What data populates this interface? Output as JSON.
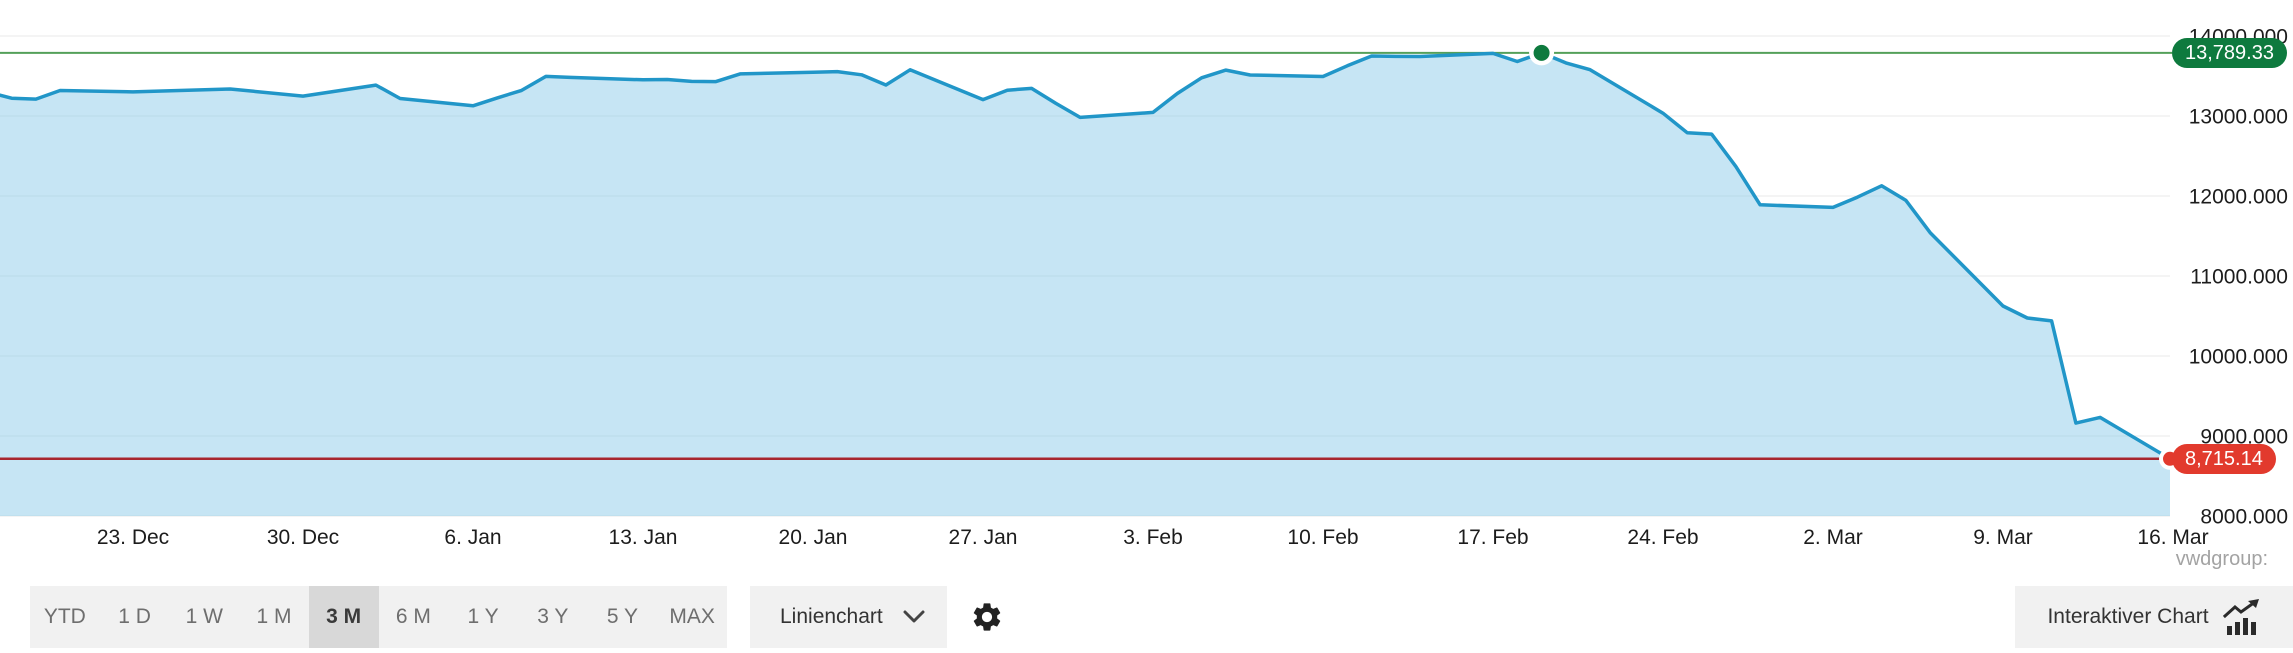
{
  "watermark": "vwdgroup:",
  "colors": {
    "line": "#2196c8",
    "area_fill": "#8ecce9",
    "grid": "#e9e9e9",
    "high_line": "#54a05a",
    "low_line": "#a8262e",
    "high_badge": "#0e7a3e",
    "low_badge": "#e23a2d",
    "axis_text": "#1c1c1c"
  },
  "chart_data": {
    "type": "area",
    "title": "",
    "xlabel": "",
    "ylabel": "",
    "grid": true,
    "legend": "none",
    "ylim": [
      8000,
      14450
    ],
    "y_axis": {
      "tick_labels": [
        "14000.000",
        "13000.000",
        "12000.000",
        "11000.000",
        "10000.000",
        "9000.000",
        "8000.000"
      ],
      "tick_values": [
        14000,
        13000,
        12000,
        11000,
        10000,
        9000,
        8000
      ]
    },
    "x_axis": {
      "tick_labels": [
        "23. Dec",
        "30. Dec",
        "6. Jan",
        "13. Jan",
        "20. Jan",
        "27. Jan",
        "3. Feb",
        "10. Feb",
        "17. Feb",
        "24. Feb",
        "2. Mar",
        "9. Mar",
        "16. Mar"
      ],
      "days_per_tick": 7
    },
    "high_marker": {
      "label": "13,789.33",
      "value": 13789.33
    },
    "low_marker": {
      "label": "8,715.14",
      "value": 8715.14
    },
    "series": [
      {
        "name": "price",
        "points": [
          {
            "date": "17. Dec",
            "d": -5.5,
            "value": 13260
          },
          {
            "date": "18. Dec",
            "d": -5,
            "value": 13222
          },
          {
            "date": "19. Dec",
            "d": -4,
            "value": 13211
          },
          {
            "date": "20. Dec",
            "d": -3,
            "value": 13319
          },
          {
            "date": "23. Dec",
            "d": 0,
            "value": 13301
          },
          {
            "date": "27. Dec",
            "d": 4,
            "value": 13337
          },
          {
            "date": "30. Dec",
            "d": 7,
            "value": 13249
          },
          {
            "date": "2. Jan",
            "d": 10,
            "value": 13386
          },
          {
            "date": "3. Jan",
            "d": 11,
            "value": 13219
          },
          {
            "date": "6. Jan",
            "d": 14,
            "value": 13127
          },
          {
            "date": "7. Jan",
            "d": 15,
            "value": 13226
          },
          {
            "date": "8. Jan",
            "d": 16,
            "value": 13320
          },
          {
            "date": "9. Jan",
            "d": 17,
            "value": 13495
          },
          {
            "date": "10. Jan",
            "d": 18,
            "value": 13483
          },
          {
            "date": "13. Jan",
            "d": 21,
            "value": 13452
          },
          {
            "date": "14. Jan",
            "d": 22,
            "value": 13456
          },
          {
            "date": "15. Jan",
            "d": 23,
            "value": 13432
          },
          {
            "date": "16. Jan",
            "d": 24,
            "value": 13430
          },
          {
            "date": "17. Jan",
            "d": 25,
            "value": 13526
          },
          {
            "date": "20. Jan",
            "d": 28,
            "value": 13546
          },
          {
            "date": "21. Jan",
            "d": 29,
            "value": 13555
          },
          {
            "date": "22. Jan",
            "d": 30,
            "value": 13515
          },
          {
            "date": "23. Jan",
            "d": 31,
            "value": 13388
          },
          {
            "date": "24. Jan",
            "d": 32,
            "value": 13577
          },
          {
            "date": "27. Jan",
            "d": 35,
            "value": 13205
          },
          {
            "date": "28. Jan",
            "d": 36,
            "value": 13323
          },
          {
            "date": "29. Jan",
            "d": 37,
            "value": 13345
          },
          {
            "date": "30. Jan",
            "d": 38,
            "value": 13157
          },
          {
            "date": "31. Jan",
            "d": 39,
            "value": 12982
          },
          {
            "date": "3. Feb",
            "d": 42,
            "value": 13045
          },
          {
            "date": "4. Feb",
            "d": 43,
            "value": 13281
          },
          {
            "date": "5. Feb",
            "d": 44,
            "value": 13478
          },
          {
            "date": "6. Feb",
            "d": 45,
            "value": 13574
          },
          {
            "date": "7. Feb",
            "d": 46,
            "value": 13513
          },
          {
            "date": "10. Feb",
            "d": 49,
            "value": 13494
          },
          {
            "date": "11. Feb",
            "d": 50,
            "value": 13627
          },
          {
            "date": "12. Feb",
            "d": 51,
            "value": 13750
          },
          {
            "date": "13. Feb",
            "d": 52,
            "value": 13745
          },
          {
            "date": "14. Feb",
            "d": 53,
            "value": 13744
          },
          {
            "date": "17. Feb",
            "d": 56,
            "value": 13783
          },
          {
            "date": "18. Feb",
            "d": 57,
            "value": 13681
          },
          {
            "date": "19. Feb",
            "d": 58,
            "value": 13789.33
          },
          {
            "date": "20. Feb",
            "d": 59,
            "value": 13664
          },
          {
            "date": "21. Feb",
            "d": 60,
            "value": 13579
          },
          {
            "date": "24. Feb",
            "d": 63,
            "value": 13035
          },
          {
            "date": "25. Feb",
            "d": 64,
            "value": 12790
          },
          {
            "date": "26. Feb",
            "d": 65,
            "value": 12774
          },
          {
            "date": "27. Feb",
            "d": 66,
            "value": 12367
          },
          {
            "date": "28. Feb",
            "d": 67,
            "value": 11890
          },
          {
            "date": "2. Mar",
            "d": 70,
            "value": 11857
          },
          {
            "date": "3. Mar",
            "d": 71,
            "value": 11985
          },
          {
            "date": "4. Mar",
            "d": 72,
            "value": 12128
          },
          {
            "date": "5. Mar",
            "d": 73,
            "value": 11945
          },
          {
            "date": "6. Mar",
            "d": 74,
            "value": 11542
          },
          {
            "date": "9. Mar",
            "d": 77,
            "value": 10625
          },
          {
            "date": "10. Mar",
            "d": 78,
            "value": 10475
          },
          {
            "date": "11. Mar",
            "d": 79,
            "value": 10439
          },
          {
            "date": "12. Mar",
            "d": 80,
            "value": 9161
          },
          {
            "date": "13. Mar",
            "d": 81,
            "value": 9232
          },
          {
            "date": "16. Mar",
            "d": 84,
            "value": 8715.14
          }
        ]
      }
    ]
  },
  "toolbar": {
    "ranges": [
      {
        "label": "YTD",
        "selected": false
      },
      {
        "label": "1 D",
        "selected": false
      },
      {
        "label": "1 W",
        "selected": false
      },
      {
        "label": "1 M",
        "selected": false
      },
      {
        "label": "3 M",
        "selected": true
      },
      {
        "label": "6 M",
        "selected": false
      },
      {
        "label": "1 Y",
        "selected": false
      },
      {
        "label": "3 Y",
        "selected": false
      },
      {
        "label": "5 Y",
        "selected": false
      },
      {
        "label": "MAX",
        "selected": false
      }
    ],
    "chart_type": {
      "label": "Linienchart"
    },
    "interactive_button": {
      "label": "Interaktiver Chart"
    }
  },
  "icons": {
    "chart_type_dropdown": "chevron-down",
    "settings": "gear",
    "interactive": "trending-chart-with-bars"
  }
}
